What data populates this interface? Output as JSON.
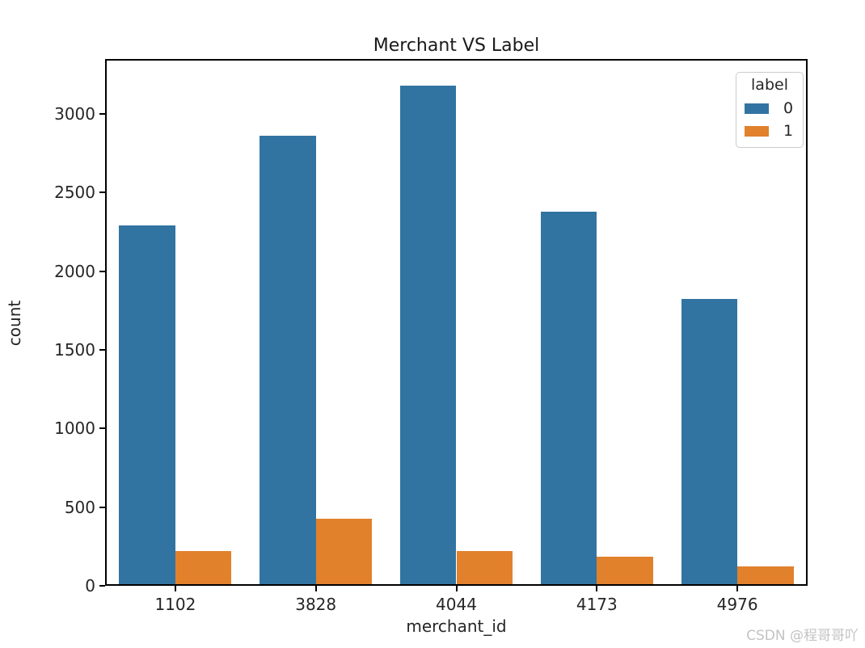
{
  "watermark": "CSDN @程哥哥吖",
  "chart_data": {
    "type": "bar",
    "title": "Merchant VS Label",
    "xlabel": "merchant_id",
    "ylabel": "count",
    "categories": [
      "1102",
      "3828",
      "4044",
      "4173",
      "4976"
    ],
    "series": [
      {
        "name": "0",
        "color": "#3274a1",
        "values": [
          2280,
          2850,
          3170,
          2370,
          1815
        ]
      },
      {
        "name": "1",
        "color": "#e1812c",
        "values": [
          210,
          415,
          210,
          175,
          115
        ]
      }
    ],
    "ylim": [
      0,
      3350
    ],
    "yticks": [
      0,
      500,
      1000,
      1500,
      2000,
      2500,
      3000
    ],
    "legend": {
      "title": "label",
      "position": "upper right"
    },
    "grid": false,
    "background": "#ffffff",
    "spine_color": "#000000"
  }
}
